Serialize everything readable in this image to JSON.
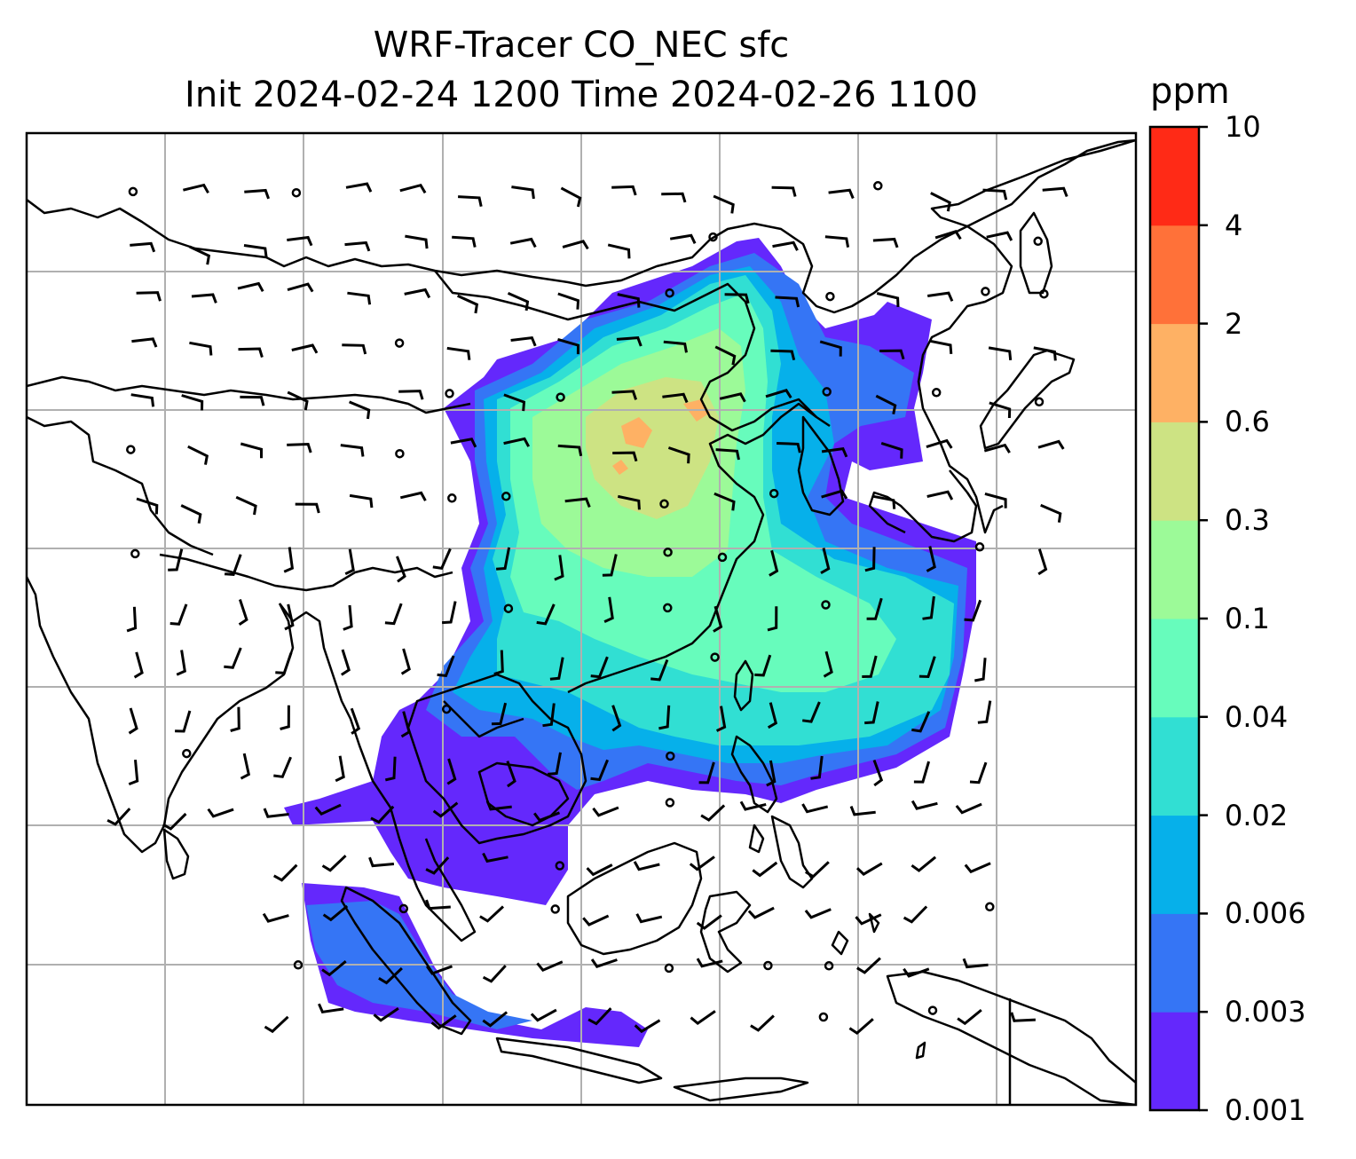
{
  "title": {
    "line1": "WRF-Tracer CO_NEC sfc",
    "line2": "Init 2024-02-24 1200 Time 2024-02-26 1100"
  },
  "colorbar": {
    "unit": "ppm",
    "levels": [
      "0.001",
      "0.003",
      "0.006",
      "0.02",
      "0.04",
      "0.1",
      "0.3",
      "0.6",
      "2",
      "4",
      "10"
    ],
    "colors": [
      "#6428fc",
      "#3575f5",
      "#06b0ea",
      "#31dfd3",
      "#67fcbc",
      "#9cfa98",
      "#cde383",
      "#feb164",
      "#ff7139",
      "#ff2a16"
    ]
  },
  "map": {
    "field": "CO_NEC surface tracer concentration",
    "overlay": "wind barbs",
    "gridlines": true,
    "coastlines": true
  }
}
